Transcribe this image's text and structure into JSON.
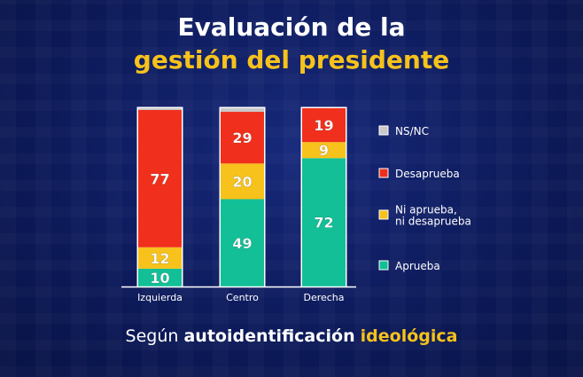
{
  "title": {
    "line1": "Evaluación de la",
    "line2": "gestión del presidente"
  },
  "footer": {
    "prefix": "Según",
    "bold": "autoidentificación",
    "highlight": "ideológica"
  },
  "colors": {
    "NS/NC": "#c9c9c9",
    "Desaprueba": "#f0301c",
    "Ni aprueba, ni desaprueba": "#f6c21b",
    "Aprueba": "#12bf96",
    "title_highlight": "#f6c21b",
    "background": "#0d1b5c"
  },
  "chart_data": {
    "type": "bar",
    "stacked": true,
    "categories": [
      "Izquierda",
      "Centro",
      "Derecha"
    ],
    "series": [
      {
        "name": "Aprueba",
        "values": [
          10,
          49,
          72
        ]
      },
      {
        "name": "Ni aprueba, ni desaprueba",
        "values": [
          12,
          20,
          9
        ]
      },
      {
        "name": "Desaprueba",
        "values": [
          77,
          29,
          19
        ]
      },
      {
        "name": "NS/NC",
        "values": [
          1,
          2,
          0
        ]
      }
    ],
    "legend_order": [
      "NS/NC",
      "Desaprueba",
      "Ni aprueba, ni desaprueba",
      "Aprueba"
    ],
    "legend_labels": [
      [
        "NS/NC"
      ],
      [
        "Desaprueba"
      ],
      [
        "Ni aprueba,",
        "ni desaprueba"
      ],
      [
        "Aprueba"
      ]
    ],
    "legend_position": "right",
    "ylim": [
      0,
      100
    ],
    "grid": false
  }
}
